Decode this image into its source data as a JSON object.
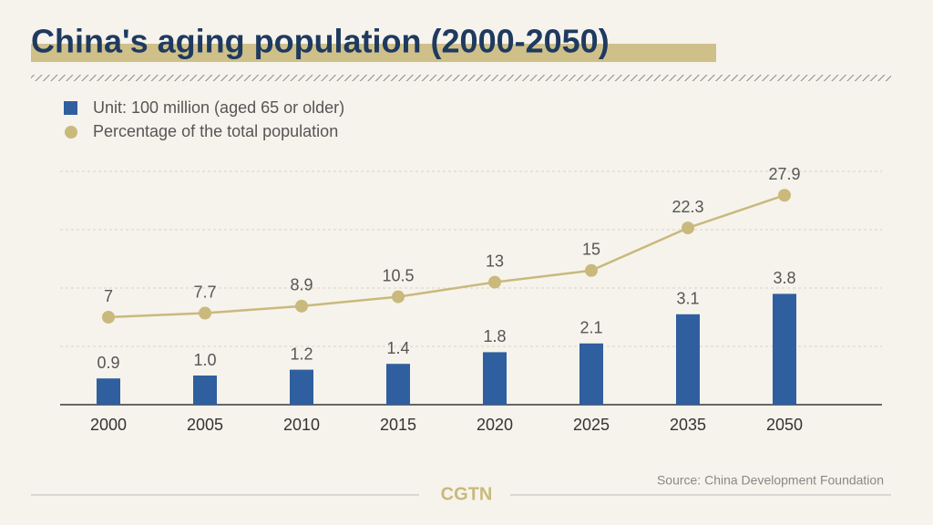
{
  "chart_data": {
    "type": "bar_line",
    "title": "China's aging population (2000-2050)",
    "categories": [
      "2000",
      "2005",
      "2010",
      "2015",
      "2020",
      "2025",
      "2035",
      "2050"
    ],
    "series": [
      {
        "name": "Unit: 100 million (aged 65 or older)",
        "type": "bar",
        "color": "#2f5f9e",
        "values": [
          0.9,
          1.0,
          1.2,
          1.4,
          1.8,
          2.1,
          3.1,
          3.8
        ],
        "value_labels": [
          "0.9",
          "1.0",
          "1.2",
          "1.4",
          "1.8",
          "2.1",
          "3.1",
          "3.8"
        ]
      },
      {
        "name": "Percentage of the total population",
        "type": "line",
        "axis": "y2",
        "color": "#c9b97c",
        "values": [
          7,
          7.7,
          8.9,
          10.5,
          13,
          15,
          22.3,
          27.9
        ]
      }
    ],
    "ylim": [
      0,
      8
    ],
    "yticks": [
      0,
      2,
      4,
      6,
      8
    ],
    "show_tick_labels": false,
    "y2lim": [
      -8,
      32
    ],
    "grid": true,
    "source": "Source: China Development Foundation",
    "logo": "CGTN"
  }
}
